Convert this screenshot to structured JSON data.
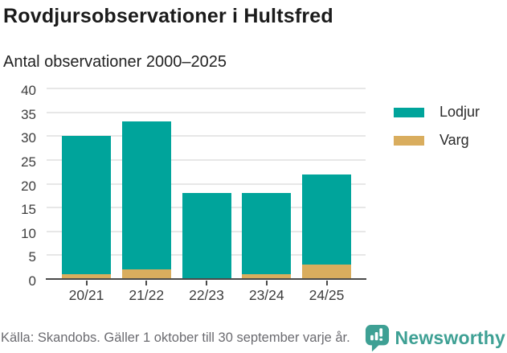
{
  "header": {
    "title": "Rovdjursobservationer i Hultsfred",
    "subtitle": "Antal observationer 2000–2025"
  },
  "chart_data": {
    "type": "bar",
    "stacked": true,
    "title": "Rovdjursobservationer i Hultsfred",
    "subtitle": "Antal observationer 2000–2025",
    "categories": [
      "20/21",
      "21/22",
      "22/23",
      "23/24",
      "24/25"
    ],
    "series": [
      {
        "name": "Lodjur",
        "color": "#00A49B",
        "values": [
          29,
          31,
          18,
          17,
          19
        ]
      },
      {
        "name": "Varg",
        "color": "#D9AD5E",
        "values": [
          1,
          2,
          0,
          1,
          3
        ]
      }
    ],
    "stack_order_bottom_to_top": [
      "Varg",
      "Lodjur"
    ],
    "stacked_totals": [
      30,
      33,
      18,
      18,
      22
    ],
    "xlabel": "",
    "ylabel": "",
    "ylim": [
      0,
      40
    ],
    "yticks": [
      0,
      5,
      10,
      15,
      20,
      25,
      30,
      35,
      40
    ],
    "grid": "horizontal",
    "legend_position": "right"
  },
  "legend": {
    "items": [
      {
        "label": "Lodjur",
        "color": "#00A49B"
      },
      {
        "label": "Varg",
        "color": "#D9AD5E"
      }
    ]
  },
  "footer": {
    "source": "Källa: Skandobs. Gäller 1 oktober till 30 september varje år.",
    "brand": "Newsworthy"
  },
  "colors": {
    "lodjur": "#00A49B",
    "varg": "#D9AD5E",
    "gridline": "#E7E7E7",
    "axis": "#4A4A4A",
    "tick_text": "#3D3D3D",
    "title_text": "#1B1B1B",
    "footer_text": "#6B6B70",
    "brand_teal": "#3EA094",
    "background": "#FFFFFF"
  }
}
